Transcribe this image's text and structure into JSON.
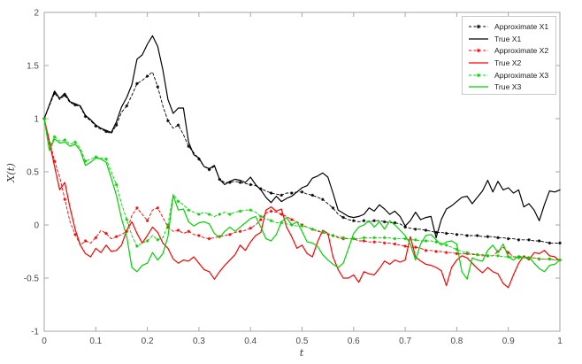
{
  "figure": {
    "background": "#ffffff",
    "axis_color": "#a6a6a6",
    "tick_label_color": "#4a4a4a"
  },
  "legend": {
    "position": "top-right",
    "border_color": "#c9c9c9"
  },
  "chart_data": {
    "type": "line",
    "title": "",
    "xlabel": "t",
    "ylabel": "X(t)",
    "grid": false,
    "legend_position": "top-right",
    "x": {
      "label": "t",
      "min": 0,
      "max": 1,
      "tick_values": [
        0,
        0.1,
        0.2,
        0.3,
        0.4,
        0.5,
        0.6,
        0.7,
        0.8,
        0.9,
        1
      ],
      "tick_labels": [
        "0",
        "0.1",
        "0.2",
        "0.3",
        "0.4",
        "0.5",
        "0.6",
        "0.7",
        "0.8",
        "0.9",
        "1"
      ]
    },
    "y": {
      "label": "X(t)",
      "min": -1,
      "max": 2,
      "tick_values": [
        -1,
        -0.5,
        0,
        0.5,
        1,
        1.5,
        2
      ],
      "tick_labels": [
        "-1",
        "-0.5",
        "0",
        "0.5",
        "1",
        "1.5",
        "2"
      ]
    },
    "t_start": 0,
    "t_step": 0.01,
    "series": [
      {
        "name": "Approximate X1",
        "color": "#000000",
        "line_style": "dashed",
        "marker": "star",
        "values": [
          1.0,
          1.12,
          1.24,
          1.18,
          1.22,
          1.15,
          1.13,
          1.11,
          1.02,
          0.98,
          0.93,
          0.9,
          0.88,
          0.86,
          0.94,
          1.06,
          1.12,
          1.22,
          1.33,
          1.36,
          1.4,
          1.44,
          1.3,
          1.12,
          0.98,
          0.91,
          0.94,
          0.85,
          0.74,
          0.68,
          0.62,
          0.55,
          0.52,
          0.55,
          0.43,
          0.4,
          0.4,
          0.41,
          0.4,
          0.39,
          0.38,
          0.37,
          0.34,
          0.32,
          0.3,
          0.29,
          0.28,
          0.3,
          0.3,
          0.31,
          0.31,
          0.29,
          0.28,
          0.26,
          0.24,
          0.2,
          0.16,
          0.1,
          0.07,
          0.05,
          0.04,
          0.03,
          0.04,
          0.03,
          0.04,
          0.04,
          0.03,
          0.02,
          0.02,
          0.01,
          -0.02,
          -0.03,
          -0.04,
          -0.04,
          -0.05,
          -0.06,
          -0.07,
          -0.07,
          -0.08,
          -0.08,
          -0.09,
          -0.09,
          -0.1,
          -0.1,
          -0.1,
          -0.11,
          -0.11,
          -0.11,
          -0.12,
          -0.12,
          -0.13,
          -0.13,
          -0.14,
          -0.14,
          -0.14,
          -0.15,
          -0.15,
          -0.16,
          -0.17,
          -0.17,
          -0.17
        ]
      },
      {
        "name": "True X1",
        "color": "#000000",
        "line_style": "solid",
        "marker": "none",
        "values": [
          1.0,
          1.13,
          1.26,
          1.19,
          1.24,
          1.16,
          1.14,
          1.12,
          1.03,
          0.99,
          0.94,
          0.91,
          0.89,
          0.87,
          0.97,
          1.11,
          1.2,
          1.32,
          1.56,
          1.6,
          1.7,
          1.78,
          1.68,
          1.46,
          1.18,
          1.05,
          1.1,
          1.1,
          0.78,
          0.66,
          0.63,
          0.55,
          0.53,
          0.56,
          0.43,
          0.38,
          0.41,
          0.43,
          0.42,
          0.4,
          0.45,
          0.38,
          0.33,
          0.26,
          0.21,
          0.27,
          0.22,
          0.25,
          0.27,
          0.31,
          0.35,
          0.37,
          0.44,
          0.46,
          0.49,
          0.45,
          0.3,
          0.14,
          0.11,
          0.08,
          0.07,
          0.08,
          0.1,
          0.16,
          0.13,
          0.19,
          0.15,
          0.1,
          0.13,
          0.08,
          -0.01,
          0.04,
          0.12,
          0.05,
          0.07,
          0.08,
          -0.12,
          0.05,
          0.15,
          0.18,
          0.22,
          0.26,
          0.27,
          0.2,
          0.26,
          0.32,
          0.42,
          0.31,
          0.41,
          0.33,
          0.35,
          0.3,
          0.33,
          0.17,
          0.2,
          0.14,
          0.04,
          0.19,
          0.32,
          0.31,
          0.33
        ]
      },
      {
        "name": "Approximate X2",
        "color": "#ff0000",
        "line_style": "dashed",
        "marker": "star",
        "values": [
          1.0,
          0.8,
          0.6,
          0.45,
          0.24,
          0.03,
          -0.09,
          -0.19,
          -0.15,
          -0.17,
          -0.12,
          -0.05,
          -0.08,
          -0.13,
          -0.11,
          -0.09,
          -0.06,
          0.09,
          0.16,
          0.1,
          0.04,
          0.14,
          0.16,
          0.07,
          -0.02,
          -0.06,
          -0.05,
          -0.08,
          -0.06,
          -0.09,
          -0.1,
          -0.12,
          -0.13,
          -0.12,
          -0.11,
          -0.1,
          -0.09,
          -0.07,
          -0.06,
          -0.05,
          -0.03,
          0.0,
          0.05,
          0.11,
          0.13,
          0.12,
          0.1,
          0.08,
          0.05,
          0.03,
          0.0,
          -0.02,
          -0.04,
          -0.06,
          -0.07,
          -0.09,
          -0.1,
          -0.12,
          -0.13,
          -0.13,
          -0.13,
          -0.15,
          -0.15,
          -0.16,
          -0.16,
          -0.16,
          -0.17,
          -0.17,
          -0.18,
          -0.19,
          -0.2,
          -0.21,
          -0.21,
          -0.22,
          -0.24,
          -0.24,
          -0.25,
          -0.25,
          -0.26,
          -0.26,
          -0.27,
          -0.27,
          -0.27,
          -0.28,
          -0.28,
          -0.29,
          -0.29,
          -0.29,
          -0.25,
          -0.21,
          -0.26,
          -0.3,
          -0.3,
          -0.31,
          -0.31,
          -0.31,
          -0.32,
          -0.32,
          -0.32,
          -0.33,
          -0.33
        ]
      },
      {
        "name": "True X2",
        "color": "#ff0000",
        "line_style": "solid",
        "marker": "none",
        "values": [
          1.0,
          0.78,
          0.55,
          0.33,
          0.4,
          0.16,
          -0.04,
          -0.19,
          -0.27,
          -0.3,
          -0.22,
          -0.26,
          -0.19,
          -0.25,
          -0.24,
          -0.19,
          -0.05,
          0.03,
          -0.08,
          -0.17,
          -0.1,
          -0.02,
          -0.07,
          -0.17,
          -0.22,
          -0.32,
          -0.36,
          -0.33,
          -0.34,
          -0.3,
          -0.36,
          -0.42,
          -0.44,
          -0.51,
          -0.44,
          -0.38,
          -0.33,
          -0.28,
          -0.19,
          -0.24,
          -0.16,
          -0.1,
          -0.07,
          0.14,
          0.17,
          0.13,
          0.15,
          -0.02,
          -0.11,
          -0.22,
          -0.19,
          -0.27,
          -0.3,
          -0.16,
          -0.05,
          -0.08,
          -0.3,
          -0.42,
          -0.5,
          -0.5,
          -0.47,
          -0.54,
          -0.44,
          -0.46,
          -0.47,
          -0.41,
          -0.34,
          -0.37,
          -0.33,
          -0.35,
          -0.33,
          -0.11,
          -0.3,
          -0.34,
          -0.37,
          -0.38,
          -0.4,
          -0.43,
          -0.57,
          -0.4,
          -0.33,
          -0.29,
          -0.31,
          -0.36,
          -0.41,
          -0.45,
          -0.4,
          -0.44,
          -0.46,
          -0.55,
          -0.59,
          -0.47,
          -0.36,
          -0.29,
          -0.33,
          -0.26,
          -0.27,
          -0.24,
          -0.29,
          -0.3,
          -0.34
        ]
      },
      {
        "name": "Approximate X3",
        "color": "#00d300",
        "line_style": "dashed",
        "marker": "star",
        "values": [
          1.0,
          0.72,
          0.83,
          0.79,
          0.8,
          0.76,
          0.78,
          0.72,
          0.6,
          0.62,
          0.64,
          0.63,
          0.62,
          0.5,
          0.38,
          0.2,
          0.05,
          -0.1,
          -0.2,
          -0.17,
          -0.15,
          -0.1,
          -0.14,
          -0.12,
          0.0,
          0.29,
          0.22,
          0.19,
          0.14,
          0.12,
          0.1,
          0.12,
          0.1,
          0.08,
          0.1,
          0.12,
          0.1,
          0.12,
          0.13,
          0.14,
          0.14,
          0.12,
          0.08,
          0.06,
          0.04,
          0.02,
          0.02,
          0.01,
          0.0,
          -0.01,
          -0.01,
          -0.02,
          -0.04,
          -0.05,
          -0.07,
          -0.08,
          -0.1,
          -0.11,
          -0.12,
          -0.13,
          -0.13,
          -0.13,
          -0.12,
          -0.12,
          -0.12,
          -0.12,
          -0.12,
          -0.12,
          -0.13,
          -0.13,
          -0.13,
          -0.14,
          -0.14,
          -0.15,
          -0.15,
          -0.15,
          -0.16,
          -0.17,
          -0.19,
          -0.21,
          -0.23,
          -0.25,
          -0.26,
          -0.27,
          -0.28,
          -0.28,
          -0.29,
          -0.29,
          -0.29,
          -0.3,
          -0.3,
          -0.3,
          -0.31,
          -0.31,
          -0.31,
          -0.31,
          -0.32,
          -0.32,
          -0.32,
          -0.33,
          -0.33
        ]
      },
      {
        "name": "True X3",
        "color": "#00d300",
        "line_style": "solid",
        "marker": "none",
        "values": [
          1.0,
          0.7,
          0.81,
          0.77,
          0.78,
          0.74,
          0.76,
          0.7,
          0.56,
          0.59,
          0.63,
          0.62,
          0.59,
          0.44,
          0.28,
          0.06,
          -0.11,
          -0.4,
          -0.44,
          -0.38,
          -0.36,
          -0.26,
          -0.33,
          -0.27,
          -0.11,
          0.28,
          0.14,
          0.15,
          0.03,
          -0.01,
          0.02,
          0.03,
          0.01,
          -0.08,
          -0.12,
          -0.06,
          -0.02,
          -0.06,
          -0.02,
          0.02,
          0.06,
          0.08,
          -0.02,
          -0.13,
          -0.15,
          -0.09,
          0.03,
          0.07,
          0.0,
          0.03,
          -0.06,
          -0.16,
          -0.17,
          -0.2,
          -0.28,
          -0.33,
          -0.37,
          -0.4,
          -0.36,
          -0.22,
          -0.08,
          -0.02,
          0.0,
          0.04,
          -0.02,
          0.03,
          -0.04,
          0.04,
          0.0,
          -0.05,
          -0.1,
          -0.18,
          -0.33,
          -0.18,
          -0.1,
          -0.09,
          -0.14,
          -0.19,
          -0.16,
          -0.15,
          -0.18,
          -0.44,
          -0.51,
          -0.31,
          -0.33,
          -0.34,
          -0.24,
          -0.19,
          -0.26,
          -0.18,
          -0.3,
          -0.33,
          -0.29,
          -0.31,
          -0.3,
          -0.36,
          -0.41,
          -0.44,
          -0.38,
          -0.37,
          -0.33
        ]
      }
    ]
  }
}
